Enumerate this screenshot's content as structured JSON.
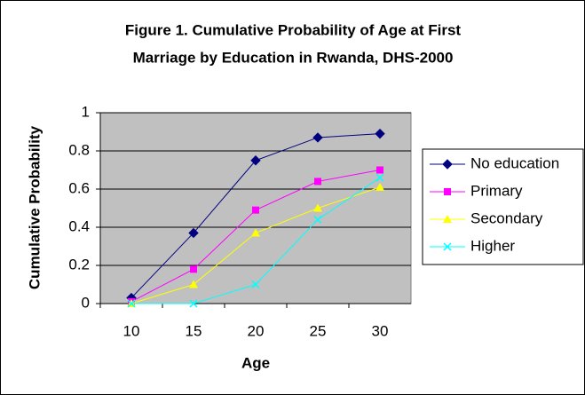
{
  "chart_data": {
    "type": "line",
    "title": [
      "Figure 1. Cumulative Probability of Age at First",
      "Marriage by Education in Rwanda, DHS-2000"
    ],
    "x_label": "Age",
    "y_label": "Cumulative Probability",
    "categories": [
      "10",
      "15",
      "20",
      "25",
      "30"
    ],
    "series": [
      {
        "name": "No education",
        "color": "#000080",
        "marker": "diamond",
        "values": [
          0.03,
          0.37,
          0.75,
          0.87,
          0.89
        ]
      },
      {
        "name": "Primary",
        "color": "#ff00ff",
        "marker": "square",
        "values": [
          0.01,
          0.18,
          0.49,
          0.64,
          0.7
        ]
      },
      {
        "name": "Secondary",
        "color": "#ffff00",
        "marker": "triangle",
        "values": [
          0.0,
          0.1,
          0.37,
          0.5,
          0.61
        ]
      },
      {
        "name": "Higher",
        "color": "#00ffff",
        "marker": "x",
        "values": [
          0.0,
          0.0,
          0.1,
          0.44,
          0.66
        ]
      }
    ],
    "ylim": [
      0,
      1
    ],
    "yticks": [
      0,
      0.2,
      0.4,
      0.6,
      0.8,
      1
    ],
    "grid": true,
    "legend": "right"
  }
}
